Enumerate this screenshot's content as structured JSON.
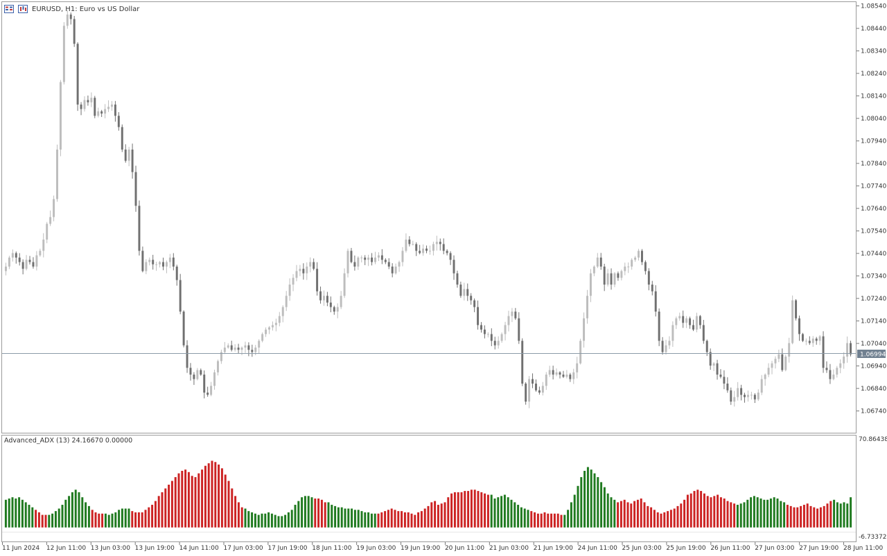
{
  "header": {
    "symbol_line": "EURUSD, H1:  Euro vs US Dollar",
    "icons": [
      "trade-panel-icon",
      "chart-type-icon"
    ]
  },
  "price_axis": {
    "labels": [
      "1.08540",
      "1.08440",
      "1.08340",
      "1.08240",
      "1.08140",
      "1.08040",
      "1.07940",
      "1.07840",
      "1.07740",
      "1.07640",
      "1.07540",
      "1.07440",
      "1.07340",
      "1.07240",
      "1.07140",
      "1.07040",
      "1.06940",
      "1.06840",
      "1.06740"
    ],
    "current_price": "1.06994"
  },
  "indicator": {
    "header": "Advanced_ADX (13) 24.16670 0.00000",
    "axis_top": "70.86438",
    "axis_bottom": "-6.73372"
  },
  "time_axis": {
    "labels": [
      "11 Jun 2024",
      "12 Jun 11:00",
      "13 Jun 03:00",
      "13 Jun 19:00",
      "14 Jun 11:00",
      "17 Jun 03:00",
      "17 Jun 19:00",
      "18 Jun 11:00",
      "19 Jun 03:00",
      "19 Jun 19:00",
      "20 Jun 11:00",
      "21 Jun 03:00",
      "21 Jun 19:00",
      "24 Jun 11:00",
      "25 Jun 03:00",
      "25 Jun 19:00",
      "26 Jun 11:00",
      "27 Jun 03:00",
      "27 Jun 19:00",
      "28 Jun 11:00"
    ]
  },
  "colors": {
    "bull_candle": "#bdbdbd",
    "bear_candle": "#707070",
    "adx_up": "#1f7a1f",
    "adx_down": "#cc2222",
    "price_line": "#8a9aa8",
    "price_label_bg": "#708090"
  },
  "chart_data": [
    {
      "type": "candlestick",
      "title": "EURUSD, H1:  Euro vs US Dollar",
      "xlabel": "",
      "ylabel": "",
      "ylim": [
        1.0668,
        1.0856
      ],
      "current_price": 1.06994,
      "grid": false,
      "note_candles": "approximate hourly closes read from chart",
      "closes": [
        1.0738,
        1.0742,
        1.0744,
        1.0742,
        1.074,
        1.0737,
        1.0741,
        1.074,
        1.0738,
        1.0743,
        1.0745,
        1.075,
        1.0757,
        1.076,
        1.0768,
        1.079,
        1.082,
        1.0845,
        1.085,
        1.0848,
        1.0837,
        1.081,
        1.0808,
        1.0812,
        1.0811,
        1.0813,
        1.0805,
        1.0807,
        1.0806,
        1.0808,
        1.0809,
        1.081,
        1.0805,
        1.08,
        1.079,
        1.0785,
        1.079,
        1.078,
        1.0765,
        1.0745,
        1.0736,
        1.074,
        1.0741,
        1.0739,
        1.0739,
        1.074,
        1.0738,
        1.074,
        1.0742,
        1.0738,
        1.0732,
        1.0718,
        1.0703,
        1.0693,
        1.069,
        1.0688,
        1.0692,
        1.069,
        1.0682,
        1.0681,
        1.0685,
        1.0691,
        1.0696,
        1.07,
        1.0702,
        1.0703,
        1.0701,
        1.0702,
        1.0701,
        1.0702,
        1.0703,
        1.0701,
        1.07,
        1.0702,
        1.0705,
        1.0708,
        1.071,
        1.0711,
        1.0712,
        1.0713,
        1.0716,
        1.072,
        1.0725,
        1.073,
        1.0733,
        1.0736,
        1.0737,
        1.0735,
        1.0738,
        1.074,
        1.0737,
        1.0727,
        1.0723,
        1.0725,
        1.0722,
        1.072,
        1.0718,
        1.072,
        1.0725,
        1.0735,
        1.0745,
        1.074,
        1.0738,
        1.0742,
        1.0742,
        1.0741,
        1.0742,
        1.074,
        1.0742,
        1.0743,
        1.0741,
        1.074,
        1.0738,
        1.0735,
        1.0738,
        1.074,
        1.0745,
        1.075,
        1.0748,
        1.0748,
        1.0745,
        1.0744,
        1.0746,
        1.0745,
        1.0745,
        1.0748,
        1.0749,
        1.0748,
        1.0745,
        1.0744,
        1.0741,
        1.0735,
        1.073,
        1.0725,
        1.0728,
        1.0725,
        1.0723,
        1.072,
        1.0712,
        1.071,
        1.0708,
        1.0708,
        1.0705,
        1.0703,
        1.0705,
        1.0708,
        1.0712,
        1.0716,
        1.0718,
        1.0715,
        1.0705,
        1.0686,
        1.0678,
        1.0688,
        1.0686,
        1.0683,
        1.0682,
        1.0685,
        1.069,
        1.0692,
        1.069,
        1.0691,
        1.069,
        1.0689,
        1.069,
        1.0688,
        1.0691,
        1.0695,
        1.0705,
        1.0715,
        1.0725,
        1.0735,
        1.0738,
        1.0742,
        1.0738,
        1.073,
        1.0735,
        1.073,
        1.0735,
        1.0733,
        1.0736,
        1.0738,
        1.0738,
        1.0741,
        1.0742,
        1.0745,
        1.074,
        1.0736,
        1.073,
        1.0727,
        1.0718,
        1.0705,
        1.07,
        1.0703,
        1.0705,
        1.0712,
        1.0715,
        1.0716,
        1.0713,
        1.0715,
        1.0712,
        1.071,
        1.0716,
        1.0712,
        1.0705,
        1.07,
        1.0694,
        1.0695,
        1.069,
        1.0689,
        1.0686,
        1.0683,
        1.0678,
        1.068,
        1.0684,
        1.0681,
        1.068,
        1.0681,
        1.0681,
        1.0679,
        1.0682,
        1.0688,
        1.069,
        1.0693,
        1.0695,
        1.0697,
        1.0699,
        1.0692,
        1.0698,
        1.0704,
        1.0723,
        1.0715,
        1.0708,
        1.0705,
        1.0705,
        1.0704,
        1.0706,
        1.0705,
        1.0707,
        1.0693,
        1.0692,
        1.0688,
        1.069,
        1.0693,
        1.0695,
        1.0698,
        1.0704,
        1.0699
      ]
    },
    {
      "type": "bar",
      "title": "Advanced_ADX (13) 24.16670 0.00000",
      "ylim": [
        -6.73372,
        70.86438
      ],
      "note": "bar sequence approximated from chart; color = trend direction",
      "runs": [
        {
          "color": "up",
          "values": [
            22,
            23,
            24,
            23,
            24,
            22,
            20,
            18,
            16
          ]
        },
        {
          "color": "down",
          "values": [
            14,
            12,
            10,
            10
          ]
        },
        {
          "color": "up",
          "values": [
            10,
            11,
            13,
            15,
            18,
            22,
            25,
            28,
            30,
            28,
            24,
            20,
            17
          ]
        },
        {
          "color": "down",
          "values": [
            14,
            12,
            11,
            11
          ]
        },
        {
          "color": "up",
          "values": [
            11,
            10,
            11,
            12,
            14,
            15,
            15,
            15
          ]
        },
        {
          "color": "down",
          "values": [
            13,
            12,
            12,
            12,
            14,
            16,
            18,
            21,
            25,
            28,
            31,
            34,
            37,
            40,
            43,
            45,
            46,
            44,
            41,
            40,
            43,
            46,
            49,
            51,
            53,
            52,
            50,
            47,
            42,
            37,
            31,
            25,
            20,
            16
          ]
        },
        {
          "color": "up",
          "values": [
            15,
            13,
            12,
            11,
            10,
            11,
            11,
            12,
            11,
            10,
            9,
            9,
            10,
            12,
            14,
            18,
            21,
            24,
            25,
            25,
            24
          ]
        },
        {
          "color": "down",
          "values": [
            23,
            23,
            22,
            20
          ]
        },
        {
          "color": "up",
          "values": [
            20,
            18,
            17,
            16,
            16,
            15,
            15,
            15,
            14,
            14,
            13,
            12,
            12,
            11,
            11
          ]
        },
        {
          "color": "down",
          "values": [
            11,
            12,
            13,
            14,
            15,
            14,
            13,
            13,
            12,
            12,
            11,
            10,
            12,
            13,
            15,
            17,
            20
          ]
        },
        {
          "color": "down",
          "values": [
            21,
            18,
            19,
            20,
            24,
            27,
            28,
            28,
            28,
            29,
            29,
            30,
            30,
            29,
            28,
            27,
            26
          ]
        },
        {
          "color": "up",
          "values": [
            26,
            23,
            24,
            25,
            26,
            24,
            22,
            20,
            18,
            16,
            15,
            14
          ]
        },
        {
          "color": "down",
          "values": [
            13,
            12,
            11,
            11,
            12,
            11,
            11,
            11,
            11,
            10
          ]
        },
        {
          "color": "up",
          "values": [
            10,
            14,
            20,
            26,
            33,
            40,
            45,
            48,
            46,
            43,
            40,
            36,
            32,
            27,
            24,
            22
          ]
        },
        {
          "color": "down",
          "values": [
            20,
            21,
            22,
            20,
            19,
            21,
            22,
            23,
            20,
            17,
            16,
            14,
            12,
            11,
            12
          ]
        },
        {
          "color": "down",
          "values": [
            13,
            14,
            15,
            17,
            19,
            22,
            26,
            27,
            29,
            30,
            29,
            27,
            25,
            24,
            25,
            26,
            24,
            23,
            21,
            20,
            19
          ]
        },
        {
          "color": "up",
          "values": [
            18,
            19,
            20,
            22,
            24,
            25,
            24,
            23,
            22,
            22,
            23,
            24,
            23,
            21,
            20
          ]
        },
        {
          "color": "down",
          "values": [
            18,
            17,
            16,
            16,
            17,
            18,
            19,
            17,
            16,
            15,
            16,
            17,
            19,
            21
          ]
        },
        {
          "color": "up",
          "values": [
            22,
            20,
            19,
            20,
            19,
            24
          ]
        }
      ]
    }
  ]
}
